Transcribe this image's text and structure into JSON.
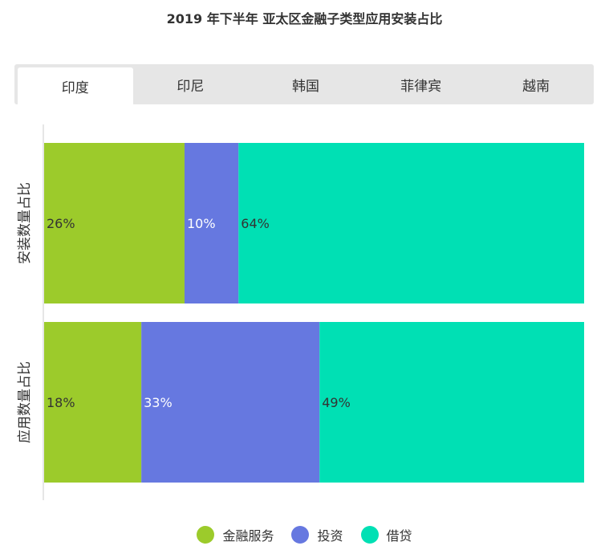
{
  "chart_data": {
    "type": "bar",
    "orientation": "horizontal",
    "stacked": true,
    "title": "2019 年下半年 亚太区金融子类型应用安装占比",
    "categories": [
      "安装数量占比",
      "应用数量占比"
    ],
    "series": [
      {
        "name": "金融服务",
        "values": [
          26,
          18
        ],
        "labels": [
          "26%",
          "18%"
        ],
        "color": "#9ccb2b"
      },
      {
        "name": "投资",
        "values": [
          10,
          33
        ],
        "labels": [
          "10%",
          "33%"
        ],
        "color": "#6678e0"
      },
      {
        "name": "借贷",
        "values": [
          64,
          49
        ],
        "labels": [
          "64%",
          "49%"
        ],
        "color": "#00e0b4"
      }
    ],
    "xlim": [
      0,
      100
    ],
    "grid": false,
    "legend": "bottom"
  },
  "tabs": [
    {
      "label": "印度",
      "active": true
    },
    {
      "label": "印尼",
      "active": false
    },
    {
      "label": "韩国",
      "active": false
    },
    {
      "label": "菲律宾",
      "active": false
    },
    {
      "label": "越南",
      "active": false
    }
  ],
  "colors": {
    "label_dark": "#333333",
    "label_light": "#ffffff",
    "axis": "#cccccc"
  }
}
